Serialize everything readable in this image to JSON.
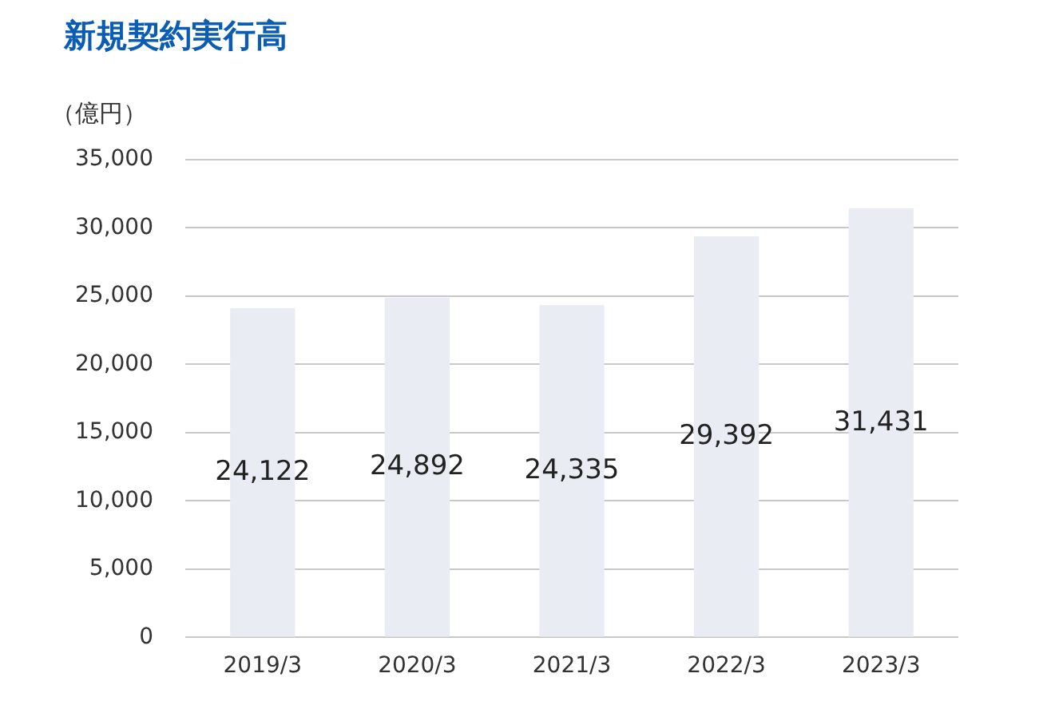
{
  "chart_data": {
    "type": "bar",
    "title": "新規契約実行高",
    "ylabel": "（億円）",
    "categories": [
      "2019/3",
      "2020/3",
      "2021/3",
      "2022/3",
      "2023/3"
    ],
    "values": [
      24122,
      24892,
      24335,
      29392,
      31431
    ],
    "color": "#e9edf3",
    "ylim": [
      0,
      35000
    ],
    "yticks": [
      {
        "value": 0,
        "label": "0"
      },
      {
        "value": 5000,
        "label": "5,000"
      },
      {
        "value": 10000,
        "label": "10,000"
      },
      {
        "value": 15000,
        "label": "15,000"
      },
      {
        "value": 20000,
        "label": "20,000"
      },
      {
        "value": 25000,
        "label": "25,000"
      },
      {
        "value": 30000,
        "label": "30,000"
      },
      {
        "value": 35000,
        "label": "35,000"
      }
    ],
    "value_labels": [
      "24,122",
      "24,892",
      "24,335",
      "29,392",
      "31,431"
    ],
    "grid": "y",
    "legend": false
  }
}
